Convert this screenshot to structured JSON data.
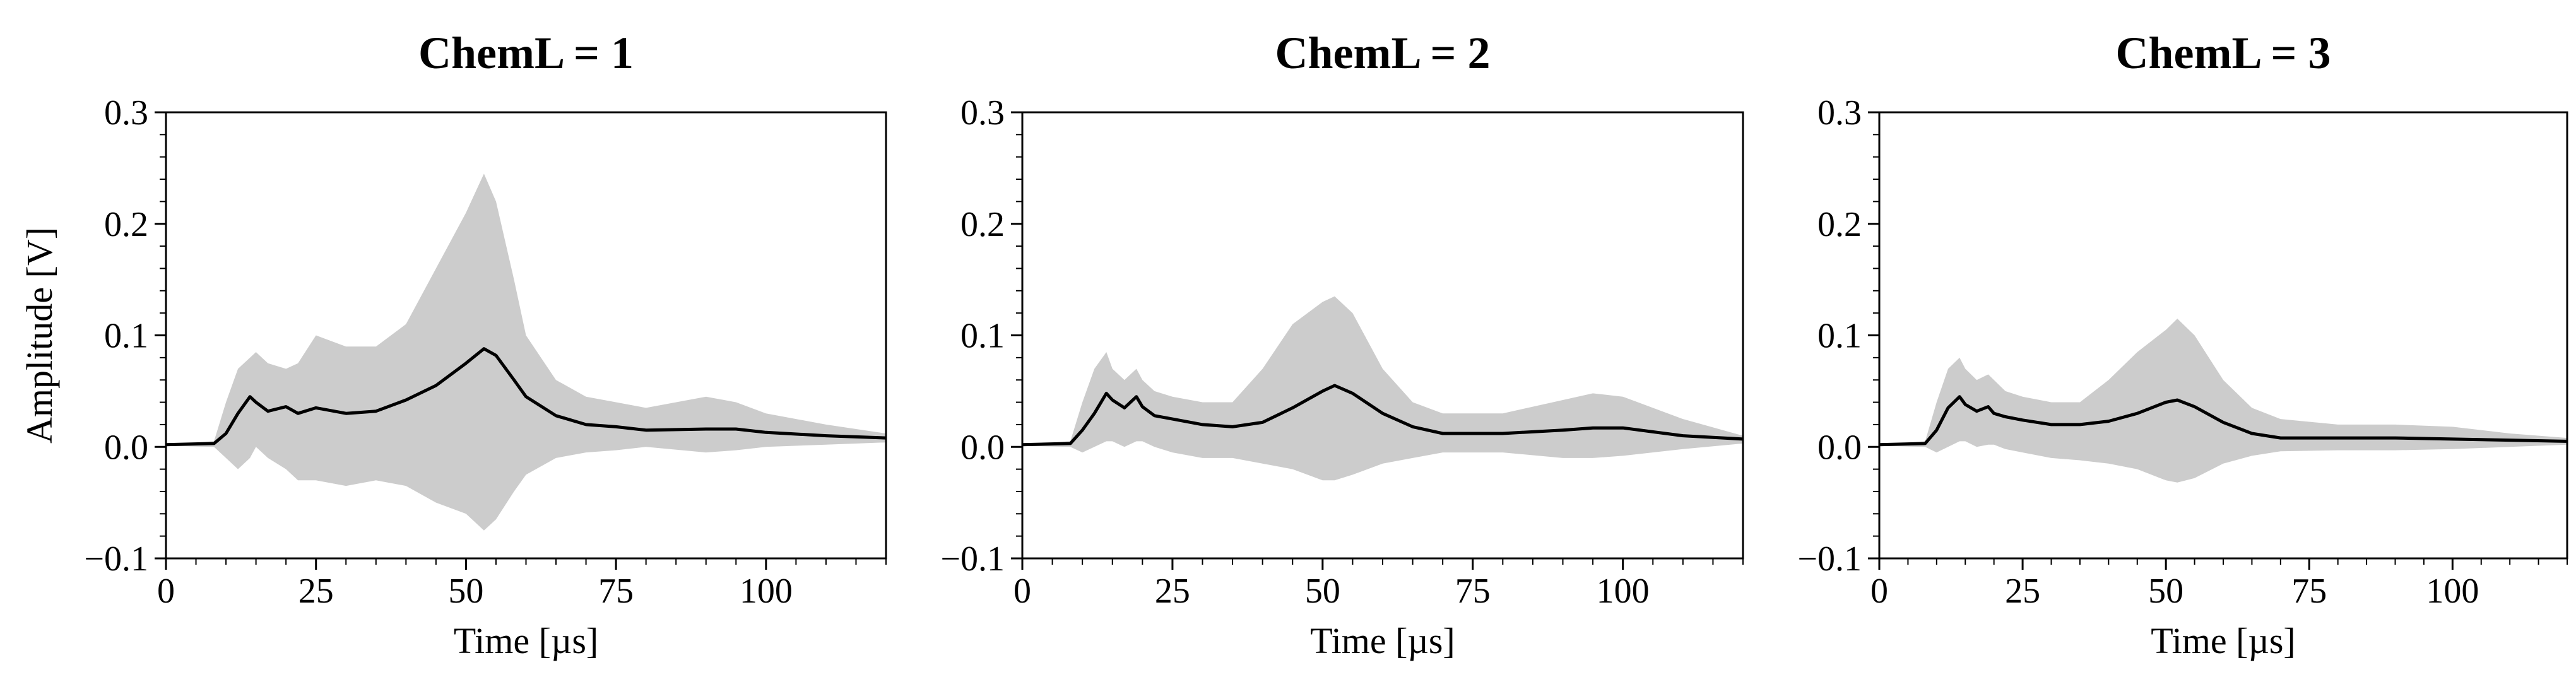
{
  "chart_data": [
    {
      "type": "line",
      "title": "ChemL = 1",
      "xlabel": "Time [µs]",
      "ylabel": "Amplitude [V]",
      "xlim": [
        0,
        120
      ],
      "ylim": [
        -0.1,
        0.3
      ],
      "xticks": [
        "0",
        "25",
        "50",
        "75",
        "100"
      ],
      "yticks": [
        "−0.1",
        "0.0",
        "0.1",
        "0.2",
        "0.3"
      ],
      "grid": false,
      "colors": {
        "mean": "#000000",
        "band": "#cccccc"
      },
      "series": [
        {
          "role": "mean",
          "x": [
            0,
            8,
            10,
            12,
            14,
            15,
            17,
            20,
            22,
            25,
            30,
            35,
            40,
            45,
            50,
            53,
            55,
            58,
            60,
            65,
            70,
            75,
            80,
            90,
            95,
            100,
            110,
            120
          ],
          "y": [
            0.002,
            0.003,
            0.012,
            0.03,
            0.045,
            0.04,
            0.032,
            0.036,
            0.03,
            0.035,
            0.03,
            0.032,
            0.042,
            0.055,
            0.075,
            0.088,
            0.082,
            0.06,
            0.045,
            0.028,
            0.02,
            0.018,
            0.015,
            0.016,
            0.016,
            0.013,
            0.01,
            0.008
          ]
        },
        {
          "role": "upper",
          "x": [
            0,
            8,
            10,
            12,
            14,
            15,
            17,
            20,
            22,
            25,
            30,
            35,
            40,
            45,
            50,
            53,
            55,
            58,
            60,
            65,
            70,
            75,
            80,
            90,
            95,
            100,
            110,
            120
          ],
          "y": [
            0.002,
            0.005,
            0.04,
            0.07,
            0.08,
            0.085,
            0.075,
            0.07,
            0.075,
            0.1,
            0.09,
            0.09,
            0.11,
            0.16,
            0.21,
            0.245,
            0.22,
            0.15,
            0.1,
            0.06,
            0.045,
            0.04,
            0.035,
            0.045,
            0.04,
            0.03,
            0.02,
            0.012
          ]
        },
        {
          "role": "lower",
          "x": [
            0,
            8,
            10,
            12,
            14,
            15,
            17,
            20,
            22,
            25,
            30,
            35,
            40,
            45,
            50,
            53,
            55,
            58,
            60,
            65,
            70,
            75,
            80,
            90,
            95,
            100,
            110,
            120
          ],
          "y": [
            0.001,
            0.0,
            -0.01,
            -0.02,
            -0.01,
            0.0,
            -0.01,
            -0.02,
            -0.03,
            -0.03,
            -0.035,
            -0.03,
            -0.035,
            -0.05,
            -0.06,
            -0.075,
            -0.065,
            -0.04,
            -0.025,
            -0.01,
            -0.005,
            -0.003,
            0.0,
            -0.005,
            -0.003,
            0.0,
            0.002,
            0.004
          ]
        }
      ]
    },
    {
      "type": "line",
      "title": "ChemL = 2",
      "xlabel": "Time [µs]",
      "ylabel": "",
      "xlim": [
        0,
        120
      ],
      "ylim": [
        -0.1,
        0.3
      ],
      "xticks": [
        "0",
        "25",
        "50",
        "75",
        "100"
      ],
      "yticks": [
        "−0.1",
        "0.0",
        "0.1",
        "0.2",
        "0.3"
      ],
      "grid": false,
      "colors": {
        "mean": "#000000",
        "band": "#cccccc"
      },
      "series": [
        {
          "role": "mean",
          "x": [
            0,
            8,
            10,
            12,
            14,
            15,
            17,
            19,
            20,
            22,
            25,
            30,
            35,
            40,
            45,
            50,
            52,
            55,
            60,
            65,
            70,
            80,
            90,
            95,
            100,
            110,
            120
          ],
          "y": [
            0.002,
            0.003,
            0.015,
            0.03,
            0.048,
            0.042,
            0.035,
            0.045,
            0.036,
            0.028,
            0.025,
            0.02,
            0.018,
            0.022,
            0.035,
            0.05,
            0.055,
            0.048,
            0.03,
            0.018,
            0.012,
            0.012,
            0.015,
            0.017,
            0.017,
            0.01,
            0.007
          ]
        },
        {
          "role": "upper",
          "x": [
            0,
            8,
            10,
            12,
            14,
            15,
            17,
            19,
            20,
            22,
            25,
            30,
            35,
            40,
            45,
            50,
            52,
            55,
            60,
            65,
            70,
            80,
            90,
            95,
            100,
            110,
            120
          ],
          "y": [
            0.002,
            0.005,
            0.04,
            0.07,
            0.085,
            0.07,
            0.06,
            0.07,
            0.06,
            0.05,
            0.045,
            0.04,
            0.04,
            0.07,
            0.11,
            0.13,
            0.135,
            0.12,
            0.07,
            0.04,
            0.03,
            0.03,
            0.042,
            0.048,
            0.045,
            0.025,
            0.01
          ]
        },
        {
          "role": "lower",
          "x": [
            0,
            8,
            10,
            12,
            14,
            15,
            17,
            19,
            20,
            22,
            25,
            30,
            35,
            40,
            45,
            50,
            52,
            55,
            60,
            65,
            70,
            80,
            90,
            95,
            100,
            110,
            120
          ],
          "y": [
            0.001,
            0.0,
            -0.005,
            0.0,
            0.005,
            0.005,
            0.0,
            0.005,
            0.005,
            0.0,
            -0.005,
            -0.01,
            -0.01,
            -0.015,
            -0.02,
            -0.03,
            -0.03,
            -0.025,
            -0.015,
            -0.01,
            -0.005,
            -0.005,
            -0.01,
            -0.01,
            -0.008,
            -0.002,
            0.003
          ]
        }
      ]
    },
    {
      "type": "line",
      "title": "ChemL = 3",
      "xlabel": "Time [µs]",
      "ylabel": "",
      "xlim": [
        0,
        120
      ],
      "ylim": [
        -0.1,
        0.3
      ],
      "xticks": [
        "0",
        "25",
        "50",
        "75",
        "100"
      ],
      "yticks": [
        "−0.1",
        "0.0",
        "0.1",
        "0.2",
        "0.3"
      ],
      "grid": false,
      "colors": {
        "mean": "#000000",
        "band": "#cccccc"
      },
      "series": [
        {
          "role": "mean",
          "x": [
            0,
            8,
            10,
            12,
            14,
            15,
            17,
            19,
            20,
            22,
            25,
            30,
            35,
            40,
            45,
            50,
            52,
            55,
            60,
            65,
            70,
            80,
            90,
            100,
            110,
            120
          ],
          "y": [
            0.002,
            0.003,
            0.015,
            0.035,
            0.045,
            0.038,
            0.032,
            0.036,
            0.03,
            0.027,
            0.024,
            0.02,
            0.02,
            0.023,
            0.03,
            0.04,
            0.042,
            0.036,
            0.022,
            0.012,
            0.008,
            0.008,
            0.008,
            0.007,
            0.006,
            0.005
          ]
        },
        {
          "role": "upper",
          "x": [
            0,
            8,
            10,
            12,
            14,
            15,
            17,
            19,
            20,
            22,
            25,
            30,
            35,
            40,
            45,
            50,
            52,
            55,
            60,
            65,
            70,
            80,
            90,
            100,
            110,
            120
          ],
          "y": [
            0.002,
            0.005,
            0.04,
            0.07,
            0.08,
            0.07,
            0.06,
            0.065,
            0.06,
            0.05,
            0.045,
            0.04,
            0.04,
            0.06,
            0.085,
            0.105,
            0.115,
            0.1,
            0.06,
            0.035,
            0.025,
            0.02,
            0.02,
            0.018,
            0.012,
            0.008
          ]
        },
        {
          "role": "lower",
          "x": [
            0,
            8,
            10,
            12,
            14,
            15,
            17,
            19,
            20,
            22,
            25,
            30,
            35,
            40,
            45,
            50,
            52,
            55,
            60,
            65,
            70,
            80,
            90,
            100,
            110,
            120
          ],
          "y": [
            0.001,
            0.0,
            -0.005,
            0.0,
            0.005,
            0.005,
            0.0,
            0.002,
            0.002,
            -0.002,
            -0.005,
            -0.01,
            -0.012,
            -0.015,
            -0.02,
            -0.03,
            -0.032,
            -0.028,
            -0.015,
            -0.008,
            -0.004,
            -0.003,
            -0.003,
            -0.002,
            0.0,
            0.002
          ]
        }
      ]
    }
  ]
}
